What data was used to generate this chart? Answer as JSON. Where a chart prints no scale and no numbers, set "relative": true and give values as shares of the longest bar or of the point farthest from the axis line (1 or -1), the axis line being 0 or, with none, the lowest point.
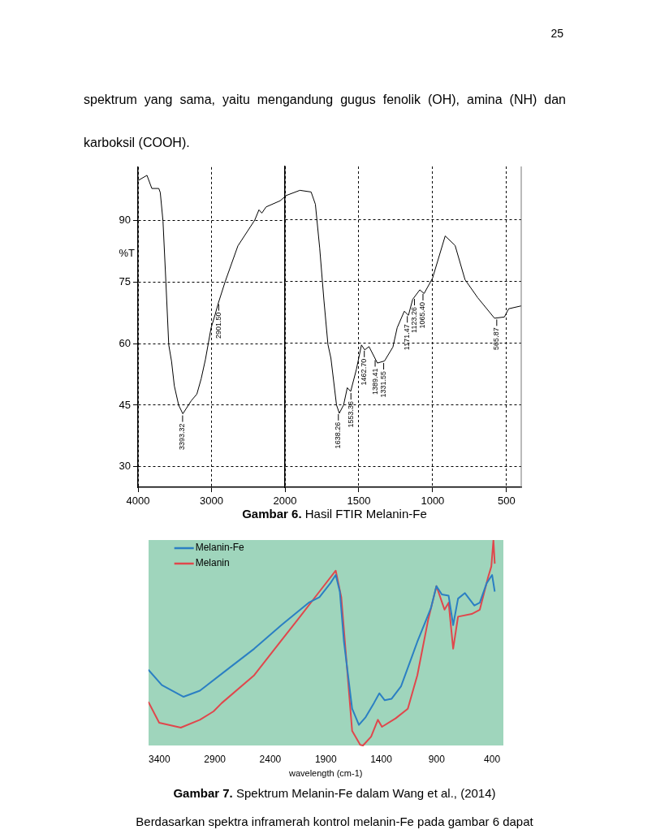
{
  "chart_data": [
    {
      "type": "line",
      "title": "Gambar 6. Hasil FTIR Melanin-Fe",
      "ylabel": "%T",
      "xlim": [
        4000,
        2000
      ],
      "xticks": [
        4000,
        3000
      ],
      "ylim": [
        25,
        103
      ],
      "yticks": [
        30,
        45,
        60,
        75,
        90
      ],
      "grid": true,
      "line_style": "solid",
      "x": [
        3993,
        3878,
        3812,
        3717,
        3697,
        3660,
        3621,
        3582,
        3544,
        3506,
        3447,
        3390,
        3275,
        3199,
        3141,
        3083,
        3006,
        2950,
        2910,
        2814,
        2641,
        2411,
        2354,
        2315,
        2257,
        2066,
        2000
      ],
      "series": [
        {
          "color": "#000000",
          "values": [
            99.8,
            101,
            97.8,
            97.8,
            96.8,
            89.8,
            75.1,
            59.7,
            55.7,
            49.7,
            45.0,
            42.9,
            46.1,
            47.7,
            51.4,
            56.1,
            63.8,
            67.1,
            69.7,
            75.1,
            83.8,
            90.1,
            92.6,
            91.8,
            93.3,
            94.8,
            95.8
          ]
        }
      ],
      "annotations": [
        "25",
        "spektrum yang sama, yaitu mengandung gugus fenolik (OH), amina (NH) dan karboksil (COOH).",
        {
          "text": "3393.32",
          "x": 3393.32,
          "y": 42.9
        },
        {
          "text": "2901.50",
          "x": 2901.5,
          "y": 70
        }
      ]
    },
    {
      "type": "line",
      "xlim": [
        2000,
        400
      ],
      "xticks": [
        2000,
        1500,
        1000,
        500
      ],
      "ylim": [
        25,
        103
      ],
      "yticks": [
        30,
        45,
        60,
        75,
        90
      ],
      "grid": true,
      "tick_labels": "x",
      "line_style": "solid",
      "x": [
        2000,
        1995,
        1899,
        1823,
        1794,
        1765,
        1736,
        1709,
        1689,
        1651,
        1632,
        1603,
        1578,
        1555,
        1516,
        1482,
        1460,
        1431,
        1374,
        1326,
        1269,
        1240,
        1192,
        1164,
        1135,
        1087,
        1058,
        1001,
        915,
        848,
        781,
        695,
        581,
        514,
        485,
        400
      ],
      "series": [
        {
          "color": "#000000",
          "values": [
            95.8,
            95.9,
            97.2,
            96.8,
            93.8,
            83.2,
            70.4,
            59.7,
            56.4,
            45.0,
            43.0,
            45.0,
            49.2,
            48.3,
            53.7,
            59.6,
            58.4,
            59.2,
            55.2,
            55.7,
            59.1,
            63.8,
            67.8,
            66.8,
            70.7,
            73.0,
            72.1,
            75.8,
            86.1,
            83.8,
            75.5,
            71.1,
            66.1,
            66.4,
            68.4,
            69.1
          ]
        }
      ],
      "annotations": [
        {
          "text": "1638.26",
          "x": 1638.26,
          "y": 43.2
        },
        {
          "text": "1553.36",
          "x": 1553.36,
          "y": 48.3
        },
        {
          "text": "1462.70",
          "x": 1462.7,
          "y": 58.6
        },
        {
          "text": "1389.41",
          "x": 1389.41,
          "y": 56.3
        },
        {
          "text": "1331.55",
          "x": 1331.55,
          "y": 55.6
        },
        {
          "text": "1171.47",
          "x": 1171.47,
          "y": 67
        },
        {
          "text": "1123.26",
          "x": 1123.26,
          "y": 71.2
        },
        {
          "text": "1065.40",
          "x": 1065.4,
          "y": 72.4
        },
        {
          "text": "565.87",
          "x": 565.87,
          "y": 66.2
        }
      ]
    },
    {
      "type": "line",
      "title": "Gambar 7. Spektrum Melanin-Fe dalam Wang et al., (2014)",
      "xlabel": "wavelength (cm-1)",
      "xlim": [
        3500,
        300
      ],
      "xticks": [
        3400,
        2900,
        2400,
        1900,
        1400,
        900,
        400
      ],
      "relative": true,
      "tick_labels": "x",
      "legend": "top left",
      "series": [
        {
          "name": "Melanin-Fe",
          "color": "#2b7fc3",
          "x": [
            3500,
            3378,
            3182,
            3035,
            2790,
            2545,
            2300,
            2054,
            1957,
            1858,
            1810,
            1773,
            1736,
            1662,
            1601,
            1540,
            1466,
            1417,
            1368,
            1307,
            1221,
            1074,
            952,
            902,
            853,
            792,
            751,
            707,
            645,
            560,
            511,
            449,
            400,
            376
          ],
          "values": [
            0.369,
            0.294,
            0.237,
            0.267,
            0.369,
            0.471,
            0.586,
            0.695,
            0.722,
            0.79,
            0.83,
            0.749,
            0.505,
            0.179,
            0.1,
            0.138,
            0.206,
            0.254,
            0.22,
            0.227,
            0.288,
            0.505,
            0.668,
            0.776,
            0.735,
            0.729,
            0.586,
            0.715,
            0.742,
            0.681,
            0.695,
            0.79,
            0.83,
            0.749
          ]
        },
        {
          "name": "Melanin",
          "color": "#e0474c",
          "x": [
            3500,
            3402,
            3207,
            3035,
            2912,
            2839,
            2545,
            2349,
            2152,
            1957,
            1810,
            1760,
            1662,
            1589,
            1564,
            1491,
            1430,
            1393,
            1270,
            1160,
            1074,
            976,
            902,
            829,
            792,
            751,
            707,
            584,
            511,
            437,
            407,
            388,
            376
          ],
          "values": [
            0.213,
            0.111,
            0.087,
            0.125,
            0.166,
            0.206,
            0.342,
            0.478,
            0.613,
            0.749,
            0.851,
            0.722,
            0.071,
            0.003,
            0,
            0.043,
            0.125,
            0.091,
            0.132,
            0.179,
            0.342,
            0.613,
            0.776,
            0.661,
            0.695,
            0.471,
            0.627,
            0.64,
            0.661,
            0.817,
            0.871,
            1,
            0.885
          ]
        }
      ],
      "annotations": [
        "Berdasarkan spektra inframerah kontrol melanin-Fe pada gambar 6 dapat"
      ]
    }
  ]
}
